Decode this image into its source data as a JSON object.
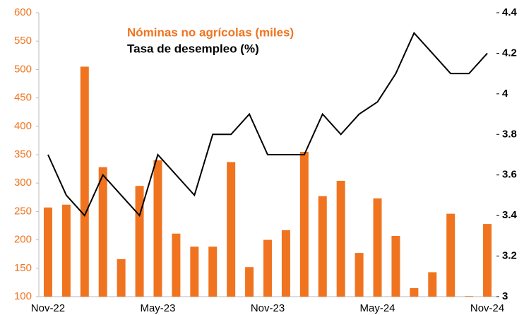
{
  "chart_data": {
    "type": "bar",
    "legend_title": "Nóminas no agrícolas (miles)",
    "categories": [
      "Nov-22",
      null,
      null,
      null,
      null,
      null,
      "May-23",
      null,
      null,
      null,
      null,
      null,
      "Nov-23",
      null,
      null,
      null,
      null,
      null,
      "May-24",
      null,
      null,
      null,
      null,
      null,
      "Nov-24"
    ],
    "series": [
      {
        "name": "Nóminas no agrícolas (miles)",
        "type": "bar",
        "color": "#f07420",
        "values": [
          257,
          262,
          505,
          328,
          166,
          295,
          340,
          211,
          188,
          188,
          337,
          152,
          200,
          217,
          355,
          277,
          304,
          177,
          273,
          207,
          115,
          143,
          246,
          101,
          228
        ]
      },
      {
        "name": "Tasa de desempleo (%)",
        "type": "line",
        "axis": "y2",
        "color": "#000000",
        "values": [
          3.7,
          3.5,
          3.4,
          3.6,
          3.5,
          3.4,
          3.7,
          3.6,
          3.5,
          3.8,
          3.8,
          3.9,
          3.7,
          3.7,
          3.7,
          3.9,
          3.8,
          3.9,
          3.96,
          4.1,
          4.3,
          4.2,
          4.1,
          4.1,
          4.2
        ]
      }
    ],
    "ylim": [
      100,
      600
    ],
    "yticks": [
      100,
      150,
      200,
      250,
      300,
      350,
      400,
      450,
      500,
      550,
      600
    ],
    "y2lim": [
      3,
      4.4
    ],
    "y2ticks": [
      3,
      3.2,
      3.4,
      3.6,
      3.8,
      4,
      4.2,
      4.4
    ],
    "grid": false
  }
}
